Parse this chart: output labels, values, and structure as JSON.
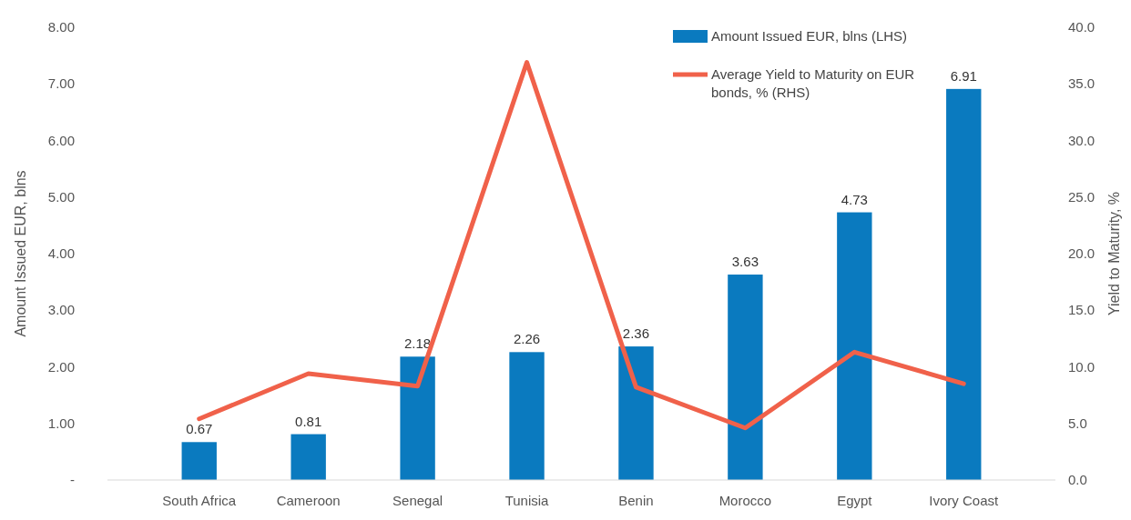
{
  "chart_data": {
    "type": "bar",
    "ylabel": "Amount Issued EUR, blns",
    "y2label": "Yield to Maturity, %",
    "categories": [
      "South Africa",
      "Cameroon",
      "Senegal",
      "Tunisia",
      "Benin",
      "Morocco",
      "Egypt",
      "Ivory Coast"
    ],
    "series": [
      {
        "name": "Amount Issued EUR, blns (LHS)",
        "color": "#0a7abf",
        "values": [
          0.67,
          0.81,
          2.18,
          2.26,
          2.36,
          3.63,
          4.73,
          6.91
        ],
        "value_labels": [
          "0.67",
          "0.81",
          "2.18",
          "2.26",
          "2.36",
          "3.63",
          "4.73",
          "6.91"
        ]
      },
      {
        "name": "Average Yield to Maturity on EUR bonds, % (RHS)",
        "type": "line",
        "axis": "y2",
        "color": "#f0614a",
        "values": [
          5.4,
          9.4,
          8.3,
          36.9,
          8.2,
          4.6,
          11.3,
          8.5
        ]
      }
    ],
    "ylim": [
      0,
      8
    ],
    "yticks": [
      {
        "value": 0,
        "label": "-"
      },
      {
        "value": 1,
        "label": "1.00"
      },
      {
        "value": 2,
        "label": "2.00"
      },
      {
        "value": 3,
        "label": "3.00"
      },
      {
        "value": 4,
        "label": "4.00"
      },
      {
        "value": 5,
        "label": "5.00"
      },
      {
        "value": 6,
        "label": "6.00"
      },
      {
        "value": 7,
        "label": "7.00"
      },
      {
        "value": 8,
        "label": "8.00"
      }
    ],
    "y2lim": [
      0,
      40
    ],
    "y2ticks": [
      {
        "value": 0,
        "label": "0.0"
      },
      {
        "value": 5,
        "label": "5.0"
      },
      {
        "value": 10,
        "label": "10.0"
      },
      {
        "value": 15,
        "label": "15.0"
      },
      {
        "value": 20,
        "label": "20.0"
      },
      {
        "value": 25,
        "label": "25.0"
      },
      {
        "value": 30,
        "label": "30.0"
      },
      {
        "value": 35,
        "label": "35.0"
      },
      {
        "value": 40,
        "label": "40.0"
      }
    ],
    "legend": "top right",
    "grid": false,
    "marker": "none",
    "line_style": "solid"
  }
}
